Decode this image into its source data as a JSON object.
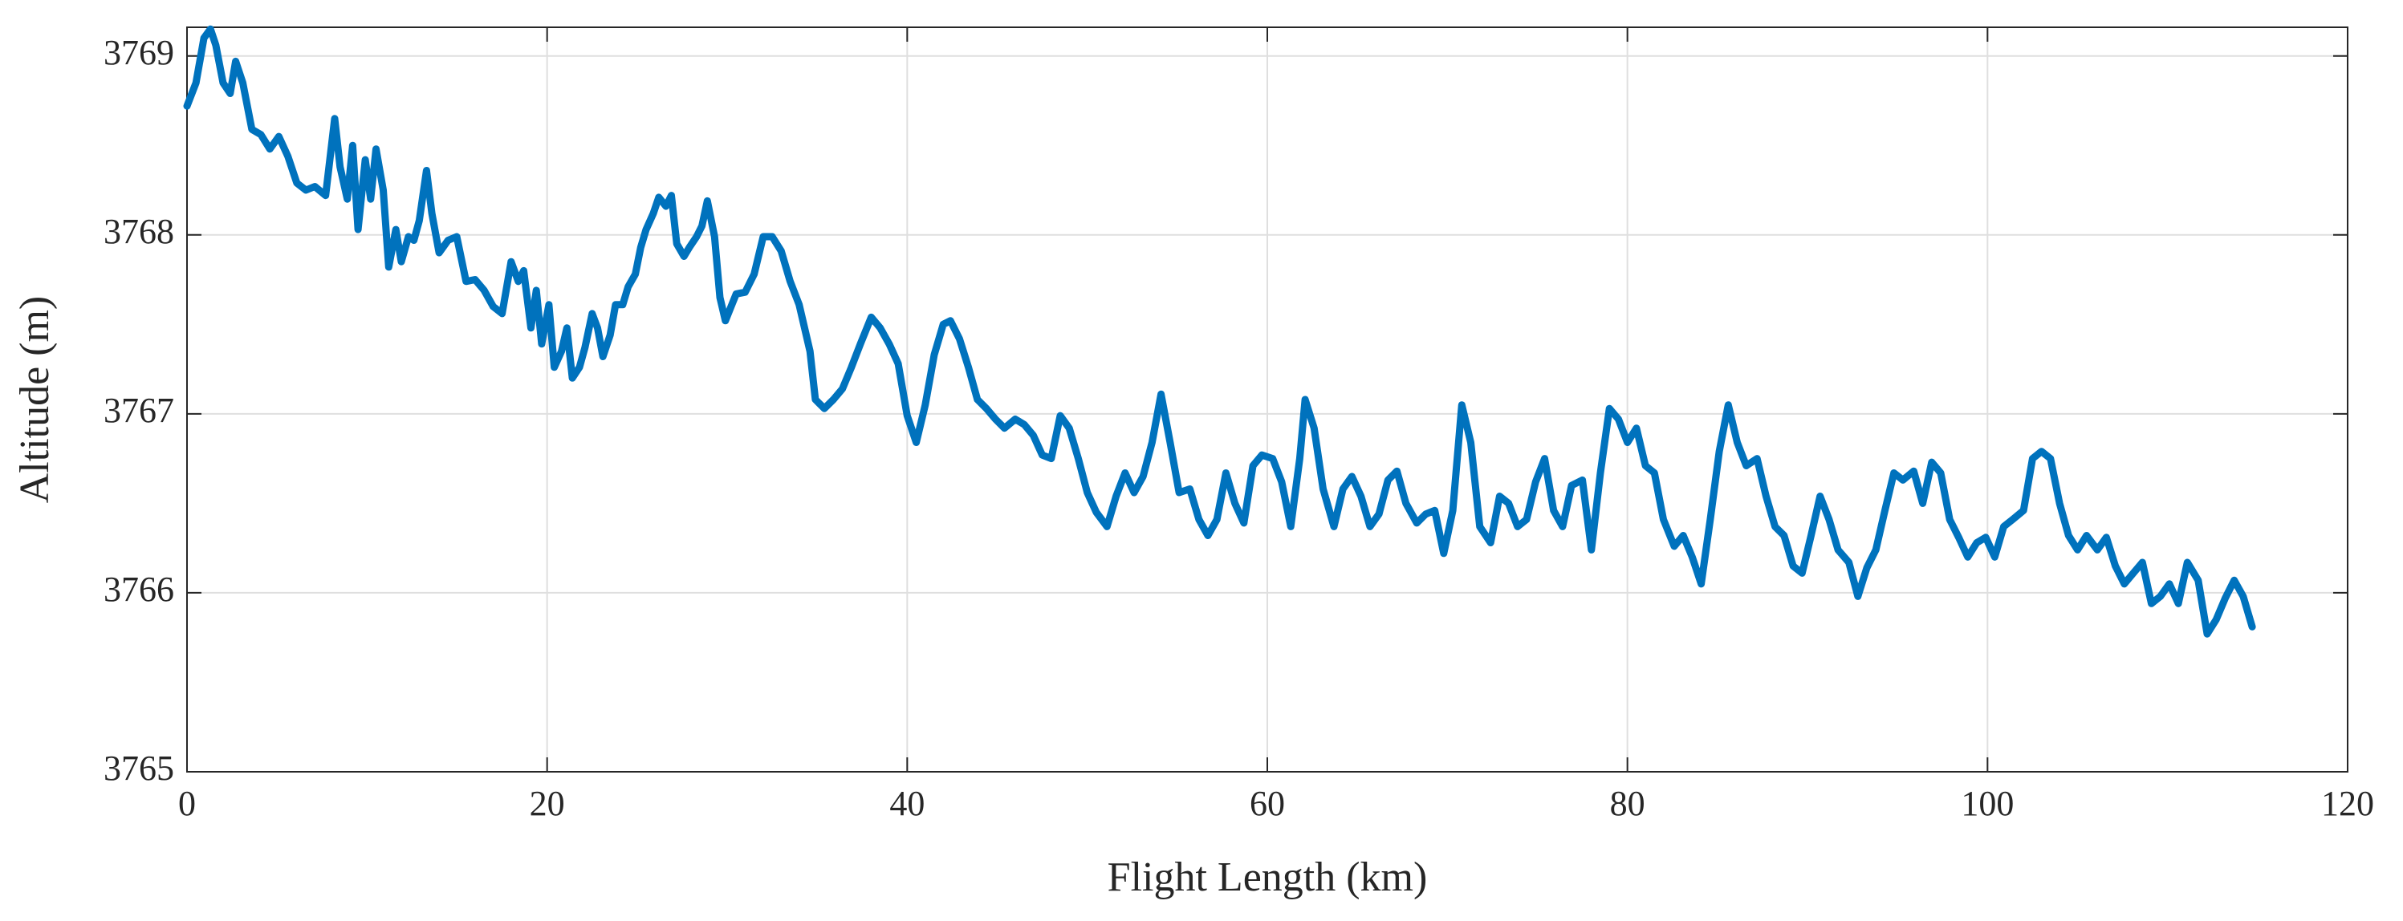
{
  "chart_data": {
    "type": "line",
    "xlabel": "Flight Length (km)",
    "ylabel": "Altitude (m)",
    "color": "#0072bd",
    "grid": true,
    "box": true,
    "xlim": [
      0,
      120
    ],
    "xticks": [
      0,
      20,
      40,
      60,
      80,
      100,
      120
    ],
    "ylim": [
      3765,
      3769.16
    ],
    "yticks": [
      3765,
      3766,
      3767,
      3768,
      3769
    ],
    "x": [
      0,
      0.5,
      0.94,
      1.3,
      1.6,
      2.0,
      2.4,
      2.7,
      3.1,
      3.6,
      4.1,
      4.6,
      5.1,
      5.6,
      6.1,
      6.6,
      7.1,
      7.7,
      8.2,
      8.5,
      8.9,
      9.2,
      9.5,
      9.9,
      10.2,
      10.5,
      10.9,
      11.2,
      11.6,
      11.9,
      12.3,
      12.6,
      12.9,
      13.3,
      13.6,
      14.0,
      14.5,
      14.98,
      15.5,
      16.0,
      16.5,
      17.0,
      17.5,
      18.0,
      18.4,
      18.7,
      19.1,
      19.4,
      19.7,
      20.1,
      20.4,
      20.8,
      21.1,
      21.4,
      21.8,
      22.1,
      22.5,
      22.8,
      23.1,
      23.5,
      23.8,
      24.2,
      24.5,
      24.9,
      25.2,
      25.5,
      25.9,
      26.2,
      26.6,
      26.9,
      27.2,
      27.6,
      27.9,
      28.3,
      28.6,
      28.9,
      29.3,
      29.6,
      29.9,
      30.5,
      31.0,
      31.5,
      32.0,
      32.5,
      33.0,
      33.5,
      34.0,
      34.6,
      34.9,
      35.4,
      35.9,
      36.4,
      36.9,
      37.4,
      38.0,
      38.5,
      39.0,
      39.5,
      40.0,
      40.5,
      41.0,
      41.5,
      42.0,
      42.4,
      42.9,
      43.4,
      43.9,
      44.4,
      44.9,
      45.4,
      46.0,
      46.5,
      47.0,
      47.5,
      48.0,
      48.5,
      49.0,
      49.5,
      50.0,
      50.5,
      51.1,
      51.6,
      52.1,
      52.6,
      53.1,
      53.6,
      54.1,
      54.6,
      55.1,
      55.7,
      56.2,
      56.7,
      57.2,
      57.7,
      58.2,
      58.7,
      59.2,
      59.7,
      60.3,
      60.8,
      61.3,
      61.8,
      62.1,
      62.6,
      63.1,
      63.7,
      64.2,
      64.7,
      65.2,
      65.7,
      66.2,
      66.7,
      67.2,
      67.7,
      68.3,
      68.8,
      69.3,
      69.8,
      70.3,
      70.8,
      71.3,
      71.8,
      72.4,
      72.9,
      73.4,
      73.9,
      74.4,
      74.9,
      75.4,
      75.9,
      76.4,
      76.9,
      77.5,
      78.0,
      78.5,
      79.0,
      79.5,
      80.0,
      80.5,
      81.0,
      81.5,
      82.0,
      82.6,
      83.1,
      83.6,
      84.1,
      84.6,
      85.1,
      85.6,
      86.1,
      86.6,
      87.2,
      87.7,
      88.2,
      88.7,
      89.2,
      89.7,
      90.2,
      90.7,
      91.2,
      91.7,
      92.3,
      92.8,
      93.3,
      93.8,
      94.3,
      94.8,
      95.3,
      95.9,
      96.4,
      96.9,
      97.4,
      97.9,
      98.4,
      98.9,
      99.4,
      99.9,
      100.4,
      100.9,
      101.4,
      102.0,
      102.5,
      103.0,
      103.5,
      104.0,
      104.5,
      105.0,
      105.5,
      106.1,
      106.6,
      107.1,
      107.6,
      108.1,
      108.6,
      109.1,
      109.6,
      110.1,
      110.6,
      111.1,
      111.7,
      112.2,
      112.7,
      113.2,
      113.7,
      114.2,
      114.7
    ],
    "values": [
      3768.72,
      3768.85,
      3769.1,
      3769.15,
      3769.06,
      3768.85,
      3768.79,
      3768.97,
      3768.85,
      3768.59,
      3768.56,
      3768.48,
      3768.55,
      3768.44,
      3768.29,
      3768.25,
      3768.27,
      3768.22,
      3768.65,
      3768.38,
      3768.2,
      3768.5,
      3768.03,
      3768.42,
      3768.2,
      3768.48,
      3768.25,
      3767.82,
      3768.03,
      3767.85,
      3767.99,
      3767.97,
      3768.08,
      3768.36,
      3768.12,
      3767.9,
      3767.97,
      3767.99,
      3767.74,
      3767.75,
      3767.69,
      3767.6,
      3767.56,
      3767.85,
      3767.74,
      3767.8,
      3767.48,
      3767.69,
      3767.39,
      3767.61,
      3767.26,
      3767.35,
      3767.48,
      3767.2,
      3767.26,
      3767.37,
      3767.56,
      3767.48,
      3767.32,
      3767.44,
      3767.61,
      3767.61,
      3767.71,
      3767.78,
      3767.93,
      3768.03,
      3768.12,
      3768.21,
      3768.16,
      3768.22,
      3767.95,
      3767.88,
      3767.93,
      3767.99,
      3768.05,
      3768.19,
      3767.99,
      3767.65,
      3767.52,
      3767.67,
      3767.68,
      3767.78,
      3767.99,
      3767.99,
      3767.91,
      3767.74,
      3767.61,
      3767.35,
      3767.08,
      3767.03,
      3767.08,
      3767.14,
      3767.26,
      3767.39,
      3767.54,
      3767.48,
      3767.39,
      3767.28,
      3766.99,
      3766.84,
      3767.05,
      3767.33,
      3767.5,
      3767.52,
      3767.42,
      3767.26,
      3767.08,
      3767.03,
      3766.97,
      3766.92,
      3766.97,
      3766.94,
      3766.88,
      3766.77,
      3766.75,
      3766.99,
      3766.92,
      3766.75,
      3766.56,
      3766.45,
      3766.37,
      3766.54,
      3766.67,
      3766.56,
      3766.65,
      3766.84,
      3767.11,
      3766.84,
      3766.56,
      3766.58,
      3766.41,
      3766.32,
      3766.41,
      3766.67,
      3766.5,
      3766.39,
      3766.71,
      3766.77,
      3766.75,
      3766.62,
      3766.37,
      3766.75,
      3767.08,
      3766.92,
      3766.58,
      3766.37,
      3766.58,
      3766.65,
      3766.54,
      3766.37,
      3766.44,
      3766.63,
      3766.68,
      3766.5,
      3766.39,
      3766.44,
      3766.46,
      3766.22,
      3766.46,
      3767.05,
      3766.84,
      3766.37,
      3766.28,
      3766.54,
      3766.5,
      3766.37,
      3766.41,
      3766.62,
      3766.75,
      3766.46,
      3766.37,
      3766.6,
      3766.63,
      3766.24,
      3766.67,
      3767.03,
      3766.97,
      3766.84,
      3766.92,
      3766.71,
      3766.67,
      3766.41,
      3766.26,
      3766.32,
      3766.2,
      3766.05,
      3766.41,
      3766.79,
      3767.05,
      3766.84,
      3766.71,
      3766.75,
      3766.54,
      3766.37,
      3766.32,
      3766.15,
      3766.11,
      3766.32,
      3766.54,
      3766.41,
      3766.24,
      3766.17,
      3765.98,
      3766.14,
      3766.24,
      3766.46,
      3766.67,
      3766.63,
      3766.68,
      3766.5,
      3766.73,
      3766.67,
      3766.41,
      3766.31,
      3766.2,
      3766.28,
      3766.31,
      3766.2,
      3766.37,
      3766.41,
      3766.46,
      3766.75,
      3766.79,
      3766.75,
      3766.5,
      3766.32,
      3766.24,
      3766.32,
      3766.24,
      3766.31,
      3766.15,
      3766.05,
      3766.11,
      3766.17,
      3765.94,
      3765.98,
      3766.05,
      3765.94,
      3766.17,
      3766.07,
      3765.77,
      3765.85,
      3765.97,
      3766.07,
      3765.98,
      3765.81
    ]
  }
}
